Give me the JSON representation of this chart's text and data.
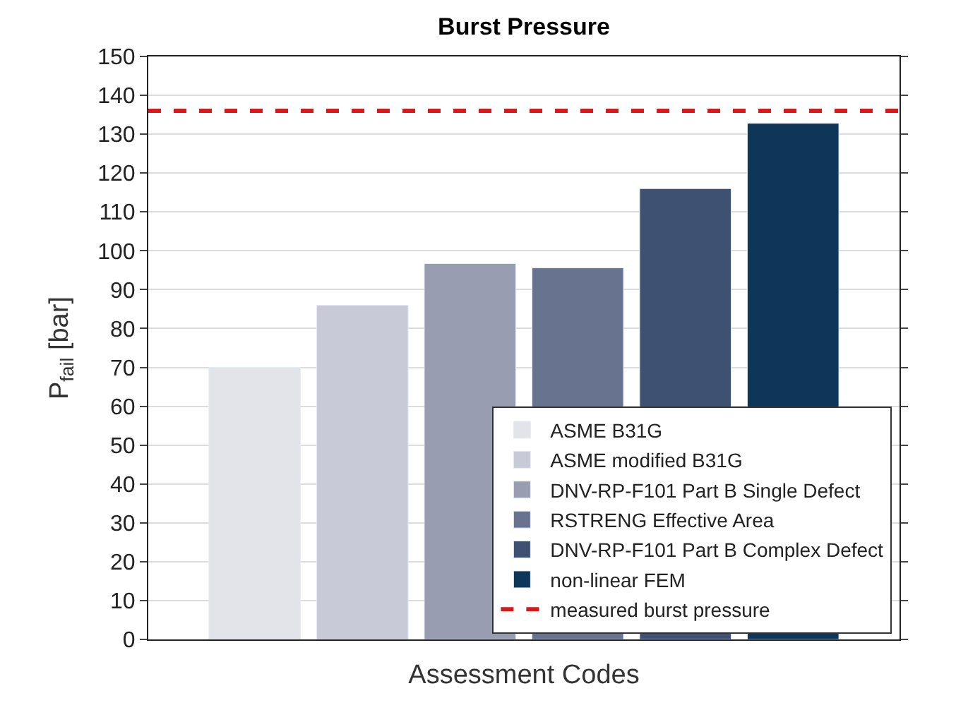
{
  "chart_data": {
    "type": "bar",
    "title": "Burst Pressure",
    "xlabel": "Assessment Codes",
    "ylabel": "P$_{fail}$ [bar]",
    "categories": [
      null
    ],
    "series": [
      {
        "name": "ASME B31G",
        "color": "#e3e3ea",
        "values": [
          70
        ]
      },
      {
        "name": "ASME modified B31G",
        "color": "#c9cad7",
        "values": [
          86
        ]
      },
      {
        "name": "DNV-RP-F101 Part B Single Defect",
        "color": "#999db1",
        "values": [
          96.7
        ]
      },
      {
        "name": "RSTRENG Effective Area",
        "color": "#68738f",
        "values": [
          95.6
        ]
      },
      {
        "name": "DNV-RP-F101 Part B Complex Defect",
        "color": "#3e5172",
        "values": [
          116
        ]
      },
      {
        "name": "non-linear FEM",
        "color": "#0d3658",
        "values": [
          132.8
        ]
      }
    ],
    "ref_lines": [
      {
        "axis": "y",
        "value": 136,
        "label": "measured burst pressure",
        "color": "#d7191c",
        "line_style": "dashed"
      }
    ],
    "ylim": [
      0,
      150
    ],
    "yticks": [
      0,
      10,
      20,
      30,
      40,
      50,
      60,
      70,
      80,
      90,
      100,
      110,
      120,
      130,
      140,
      150
    ],
    "grid": "y",
    "legend": "bottom right"
  }
}
